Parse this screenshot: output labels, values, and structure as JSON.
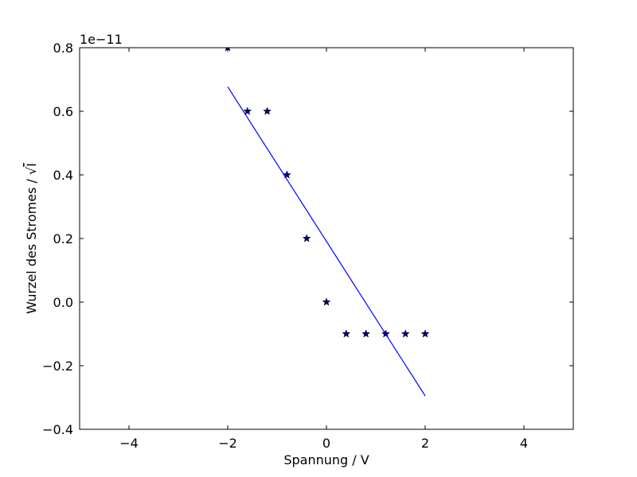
{
  "chart_data": {
    "type": "scatter",
    "title": "",
    "xlabel": "Spannung / V",
    "ylabel_prefix": "Wurzel des Stromes / ",
    "ylabel_radical": "√",
    "ylabel_var": "I",
    "y_offset_label": "1e−11",
    "xlim": [
      -5,
      5
    ],
    "ylim": [
      -0.4,
      0.8
    ],
    "x_ticks": [
      -4,
      -2,
      0,
      2,
      4
    ],
    "x_tick_labels": [
      "−4",
      "−2",
      "0",
      "2",
      "4"
    ],
    "y_ticks": [
      -0.4,
      -0.2,
      0.0,
      0.2,
      0.4,
      0.6,
      0.8
    ],
    "y_tick_labels": [
      "−0.4",
      "−0.2",
      "0.0",
      "0.2",
      "0.4",
      "0.6",
      "0.8"
    ],
    "grid": false,
    "series": [
      {
        "kind": "scatter",
        "marker": "star",
        "color": "#000080",
        "x": [
          -2.0,
          -1.6,
          -1.2,
          -0.8,
          -0.4,
          0.0,
          0.4,
          0.8,
          1.2,
          1.6,
          2.0
        ],
        "y": [
          0.8,
          0.6,
          0.6,
          0.4,
          0.2,
          0.0,
          -0.1,
          -0.1,
          -0.1,
          -0.1,
          -0.1
        ]
      },
      {
        "kind": "line",
        "color": "#0000ff",
        "x": [
          -2.0,
          2.0
        ],
        "y": [
          0.677,
          -0.295
        ]
      }
    ]
  }
}
